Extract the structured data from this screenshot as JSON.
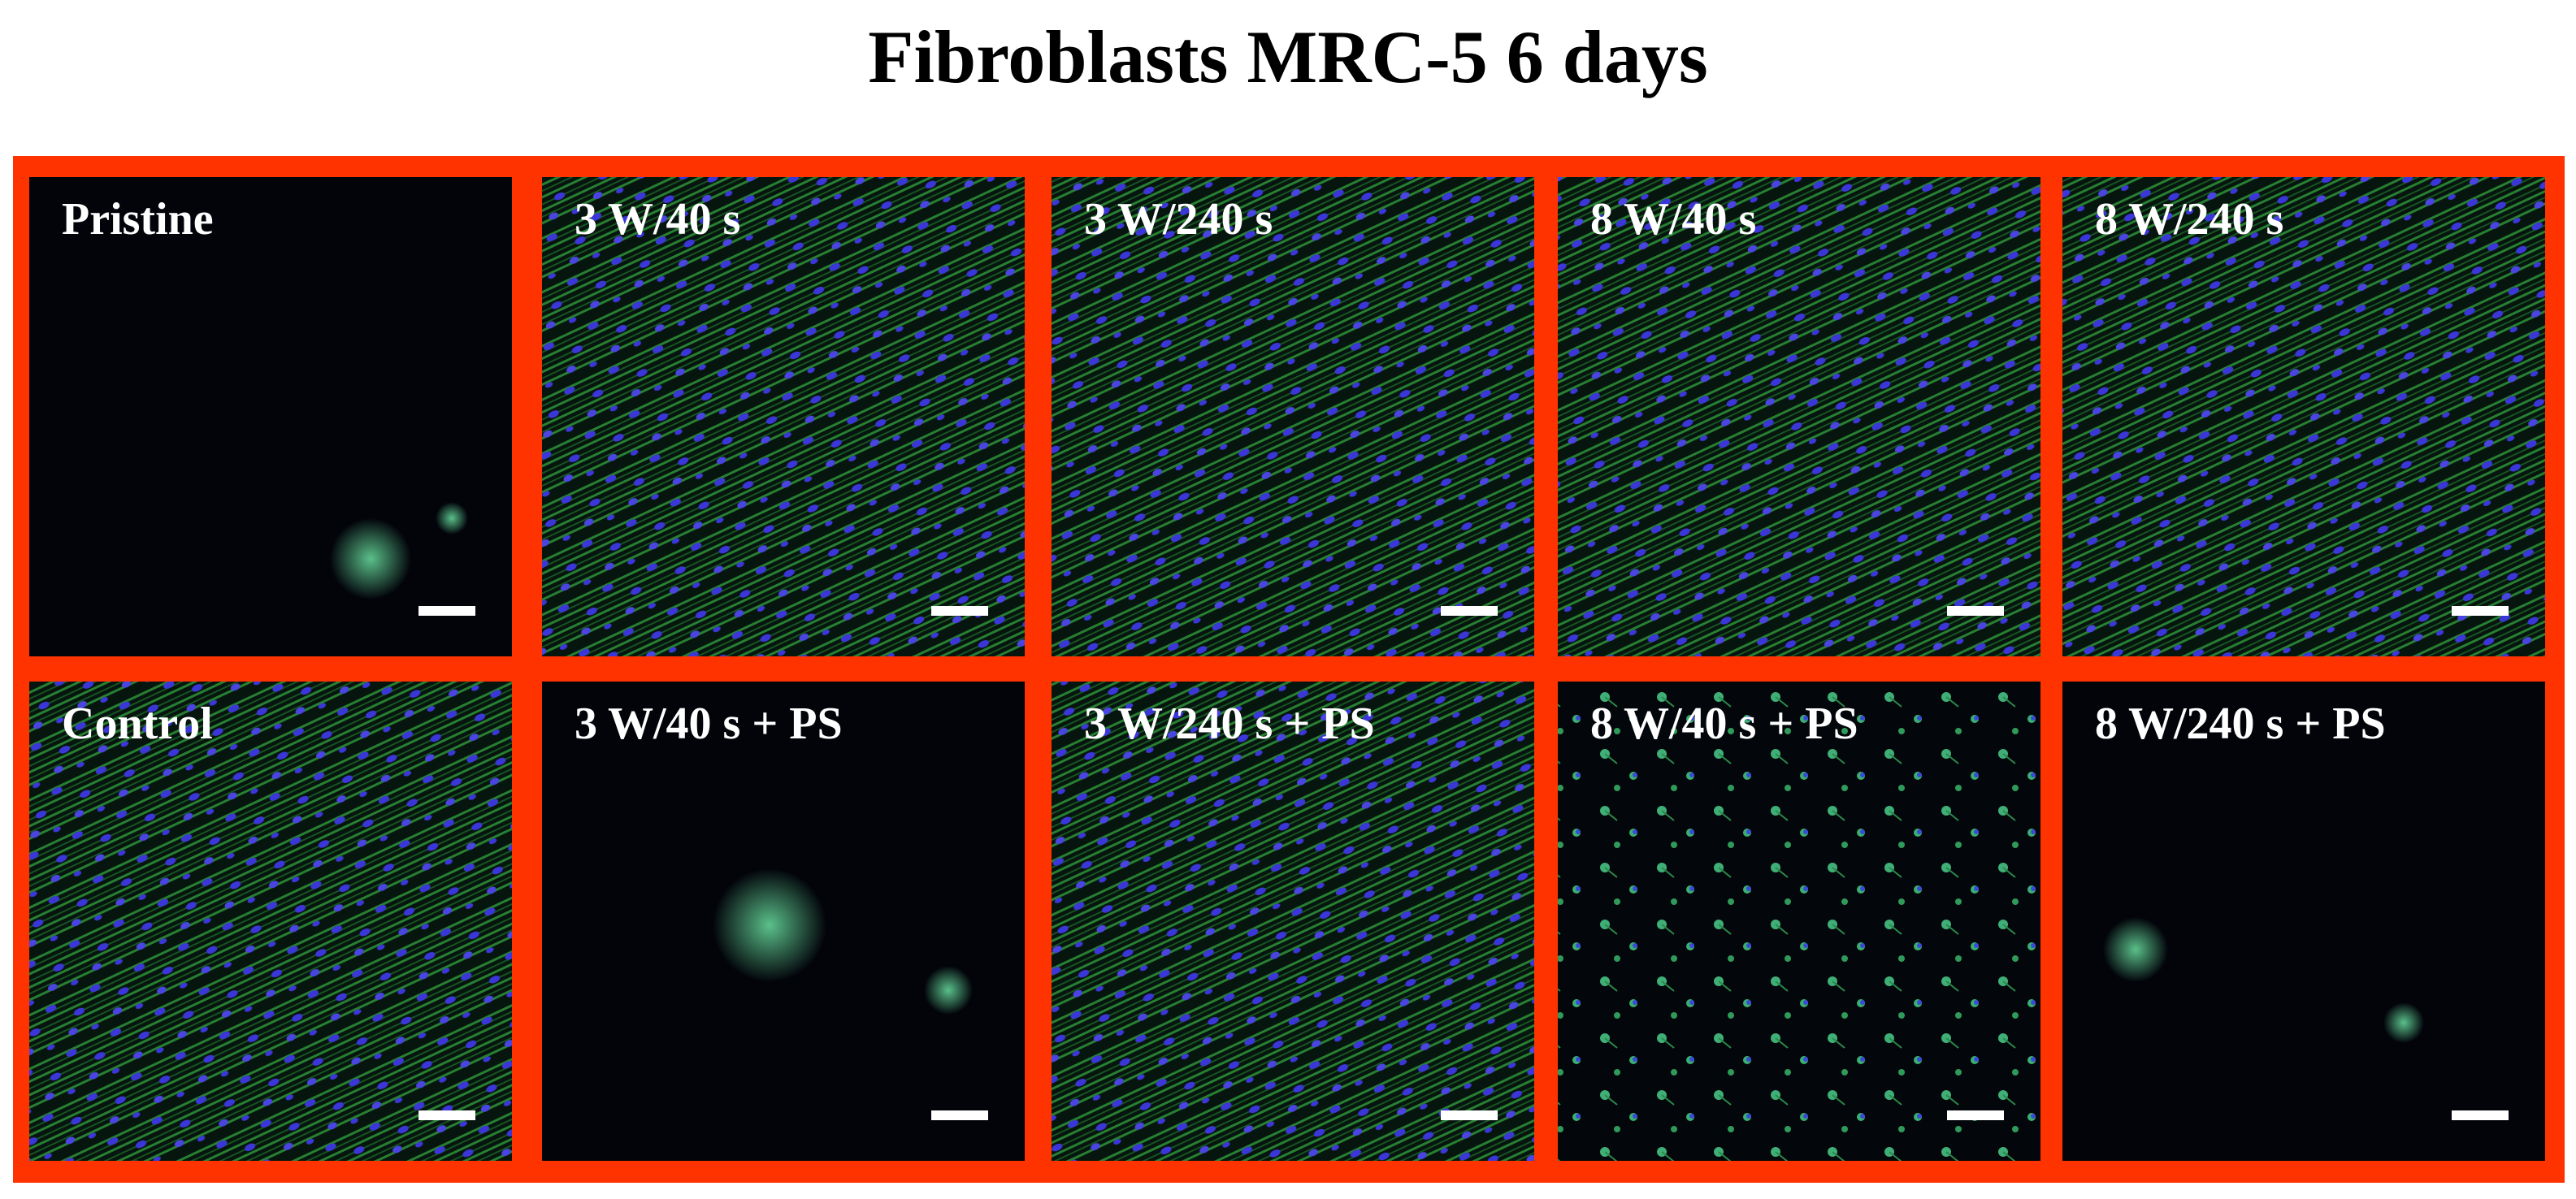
{
  "title": "Fibroblasts MRC-5 6 days",
  "panels": [
    {
      "label": "Pristine"
    },
    {
      "label": "3 W/40 s"
    },
    {
      "label": "3 W/240 s"
    },
    {
      "label": "8 W/40 s"
    },
    {
      "label": "8 W/240 s"
    },
    {
      "label": "Control"
    },
    {
      "label": "3 W/40 s + PS"
    },
    {
      "label": "3 W/240 s + PS"
    },
    {
      "label": "8 W/40 s + PS"
    },
    {
      "label": "8 W/240 s + PS"
    }
  ]
}
